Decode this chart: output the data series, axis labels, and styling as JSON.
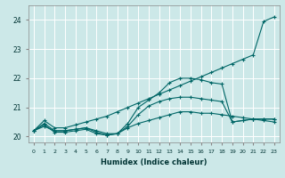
{
  "xlabel": "Humidex (Indice chaleur)",
  "xlim": [
    -0.5,
    23.5
  ],
  "ylim": [
    19.8,
    24.5
  ],
  "yticks": [
    20,
    21,
    22,
    23,
    24
  ],
  "xticks": [
    0,
    1,
    2,
    3,
    4,
    5,
    6,
    7,
    8,
    9,
    10,
    11,
    12,
    13,
    14,
    15,
    16,
    17,
    18,
    19,
    20,
    21,
    22,
    23
  ],
  "bg_color": "#cce8e8",
  "grid_color": "#ffffff",
  "line_color": "#006666",
  "series": [
    [
      20.2,
      20.35,
      20.2,
      20.2,
      20.25,
      20.3,
      20.2,
      20.1,
      20.1,
      20.3,
      20.45,
      20.55,
      20.65,
      20.75,
      20.85,
      20.85,
      20.8,
      20.8,
      20.75,
      20.7,
      20.65,
      20.6,
      20.55,
      20.5
    ],
    [
      20.2,
      20.4,
      20.15,
      20.15,
      20.2,
      20.25,
      20.1,
      20.05,
      20.1,
      20.35,
      20.75,
      21.05,
      21.2,
      21.3,
      21.35,
      21.35,
      21.3,
      21.25,
      21.2,
      20.5,
      20.55,
      20.6,
      20.6,
      20.6
    ],
    [
      20.2,
      20.45,
      20.2,
      20.2,
      20.25,
      20.3,
      20.15,
      20.05,
      20.1,
      20.45,
      21.0,
      21.25,
      21.5,
      21.85,
      22.0,
      22.0,
      21.95,
      21.85,
      21.8,
      20.5,
      20.55,
      20.6,
      20.6,
      20.6
    ],
    [
      20.2,
      20.55,
      20.3,
      20.3,
      20.4,
      20.5,
      20.6,
      20.7,
      20.85,
      21.0,
      21.15,
      21.3,
      21.45,
      21.6,
      21.75,
      21.9,
      22.05,
      22.2,
      22.35,
      22.5,
      22.65,
      22.8,
      23.95,
      24.1
    ]
  ]
}
